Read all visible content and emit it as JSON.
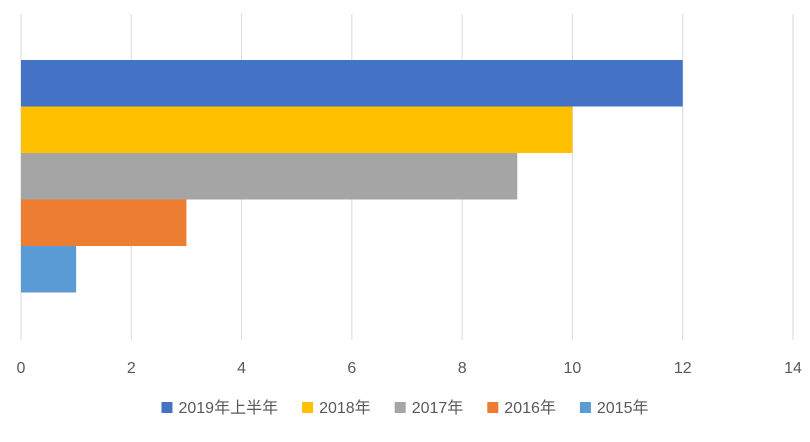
{
  "chart_data": {
    "type": "bar",
    "orientation": "horizontal",
    "title": "",
    "xlabel": "",
    "ylabel": "",
    "xlim": [
      0,
      14
    ],
    "x_ticks": [
      "0",
      "2",
      "4",
      "6",
      "8",
      "10",
      "12",
      "14"
    ],
    "grid": "vertical",
    "legend_position": "bottom",
    "series": [
      {
        "name": "2019年上半年",
        "value": 12,
        "color": "#4472C4"
      },
      {
        "name": "2018年",
        "value": 10,
        "color": "#FFC000"
      },
      {
        "name": "2017年",
        "value": 9,
        "color": "#A5A5A5"
      },
      {
        "name": "2016年",
        "value": 3,
        "color": "#ED7D31"
      },
      {
        "name": "2015年",
        "value": 1,
        "color": "#5B9BD5"
      }
    ]
  }
}
